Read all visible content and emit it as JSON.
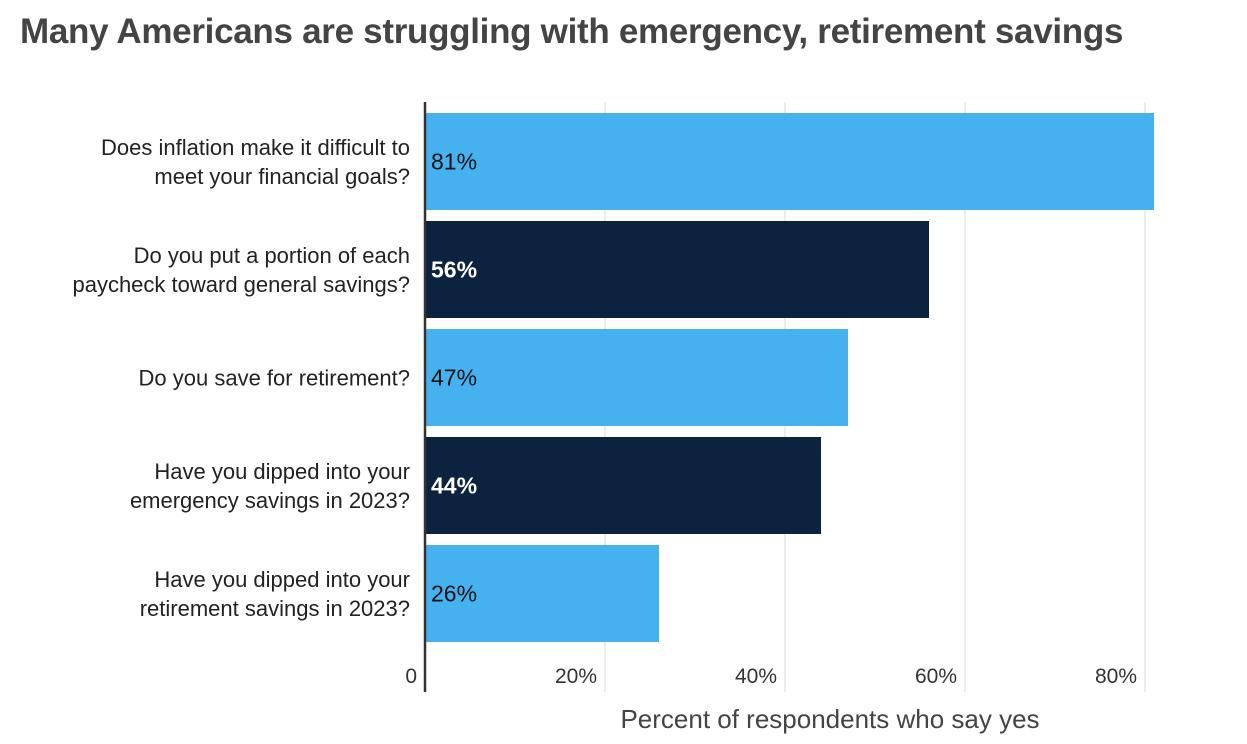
{
  "chart_data": {
    "type": "bar",
    "orientation": "horizontal",
    "title": "Many Americans are struggling with emergency, retirement savings",
    "xlabel": "Percent of respondents who say yes",
    "ylabel": "",
    "xlim": [
      0,
      80
    ],
    "xticks": [
      {
        "value": 0,
        "label": "0"
      },
      {
        "value": 20,
        "label": "20%"
      },
      {
        "value": 40,
        "label": "40%"
      },
      {
        "value": 60,
        "label": "60%"
      },
      {
        "value": 80,
        "label": "80%"
      }
    ],
    "grid": true,
    "categories": [
      [
        "Does inflation make it difficult to",
        "meet your financial goals?"
      ],
      [
        "Do you put a portion of each",
        "paycheck toward general savings?"
      ],
      [
        "Do you save for retirement?"
      ],
      [
        "Have you dipped into your",
        "emergency savings in 2023?"
      ],
      [
        "Have you dipped into your",
        "retirement savings in 2023?"
      ]
    ],
    "values": [
      81,
      56,
      47,
      44,
      26
    ],
    "data_labels": [
      "81%",
      "56%",
      "47%",
      "44%",
      "26%"
    ],
    "colors": [
      "#45b1ef",
      "#0c2340",
      "#45b1ef",
      "#0c2340",
      "#45b1ef"
    ],
    "label_colors": [
      "#111111",
      "#ffffff",
      "#111111",
      "#ffffff",
      "#111111"
    ]
  }
}
